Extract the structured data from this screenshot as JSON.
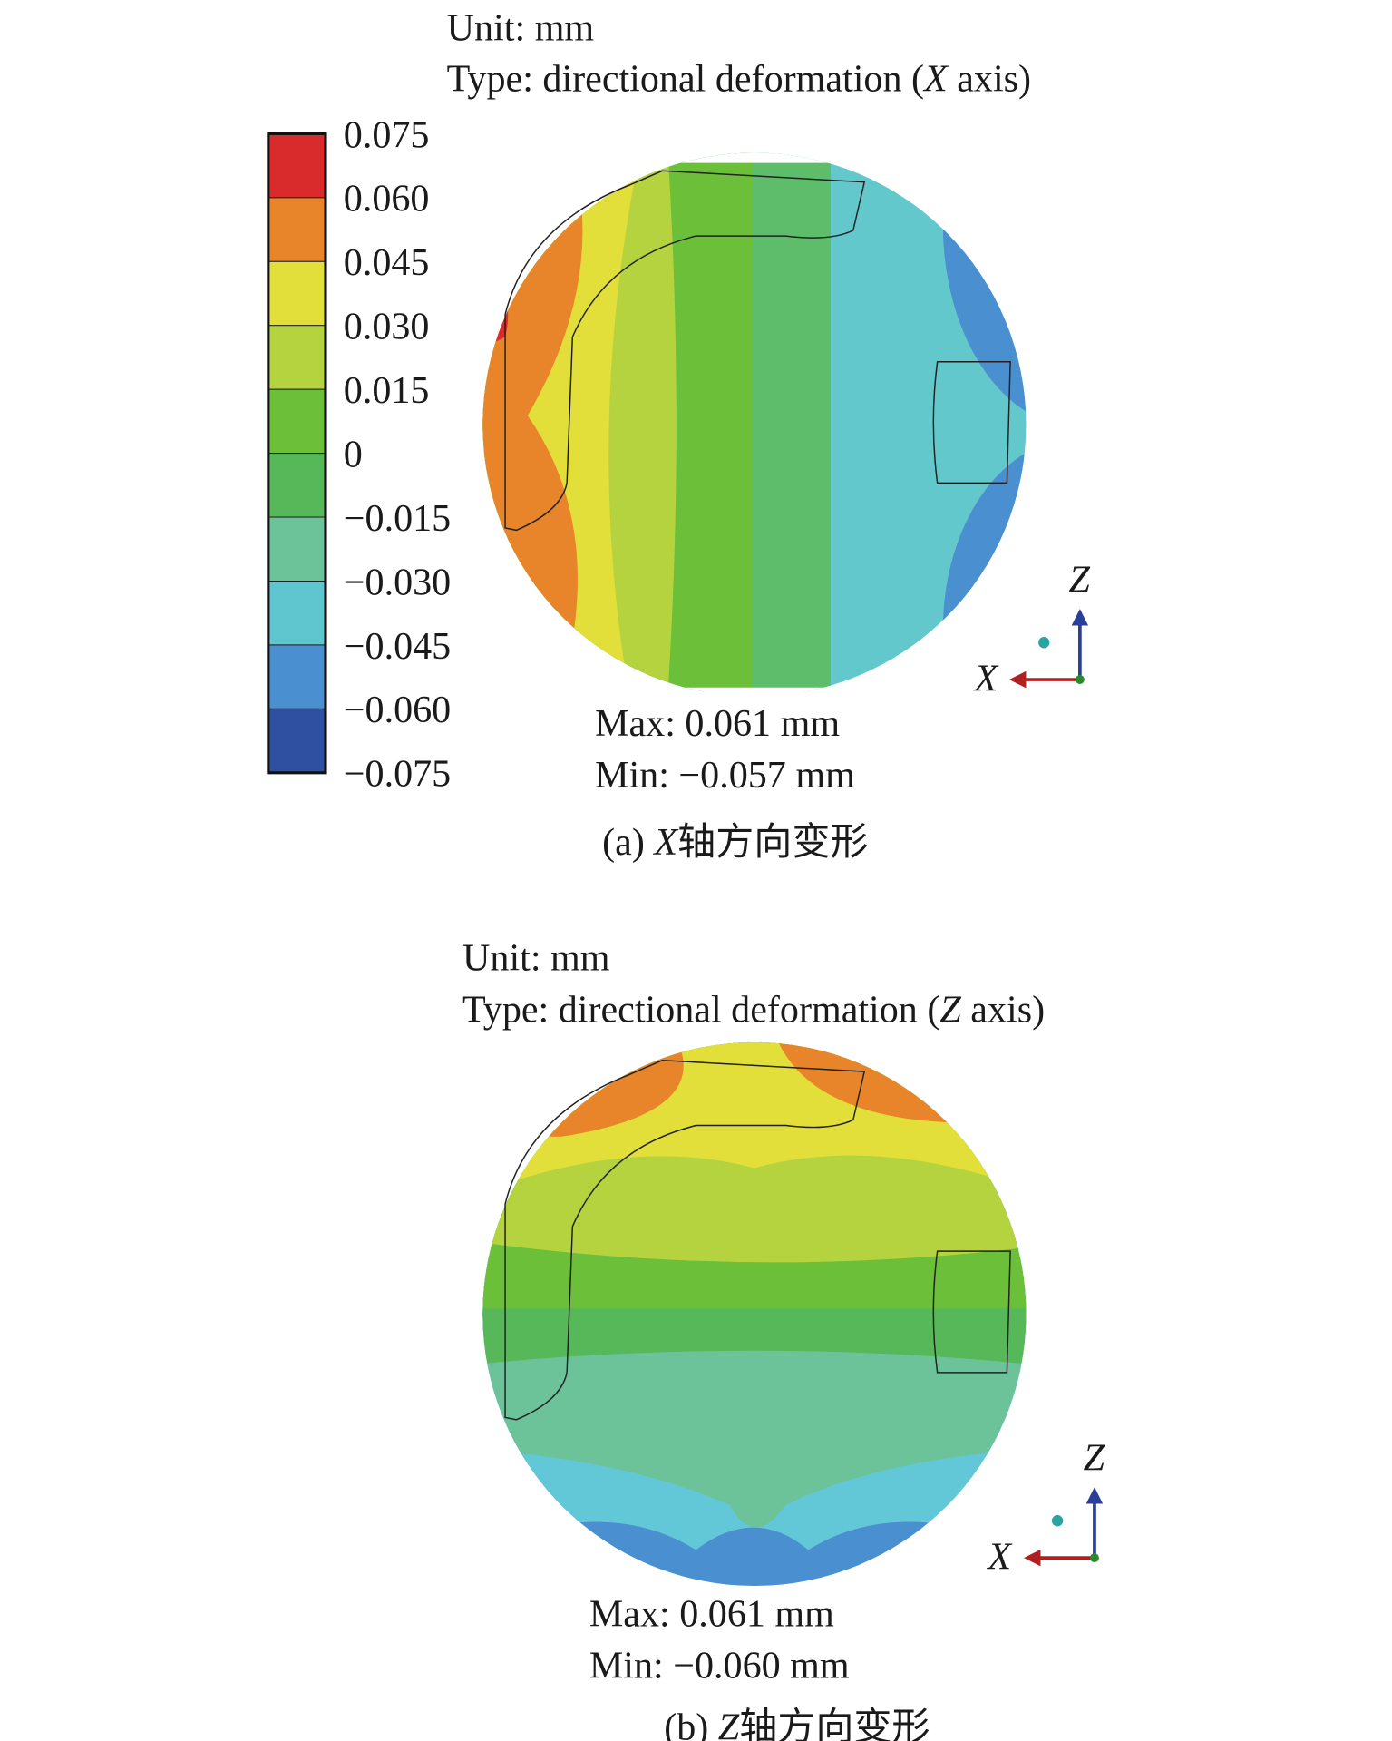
{
  "panels": [
    {
      "unit": "Unit: mm",
      "type_label": "Type: directional deformation (",
      "type_axis": "X",
      "type_end": " axis)",
      "max": "Max: 0.061 mm",
      "min": "Min: −0.057 mm",
      "caption_prefix": "(a) ",
      "caption_axis": "X",
      "caption_text": "轴方向变形",
      "triad": [
        "Z",
        "X"
      ]
    },
    {
      "unit": "Unit: mm",
      "type_label": "Type: directional deformation (",
      "type_axis": "Z",
      "type_end": " axis)",
      "max": "Max: 0.061 mm",
      "min": "Min: −0.060 mm",
      "caption_prefix": "(b) ",
      "caption_axis": "Z",
      "caption_text": "轴方向变形",
      "triad": [
        "Z",
        "X"
      ]
    }
  ],
  "legend": {
    "labels": [
      "0.075",
      "0.060",
      "0.045",
      "0.030",
      "0.015",
      "0",
      "−0.015",
      "−0.030",
      "−0.045",
      "−0.060",
      "−0.075"
    ]
  }
}
